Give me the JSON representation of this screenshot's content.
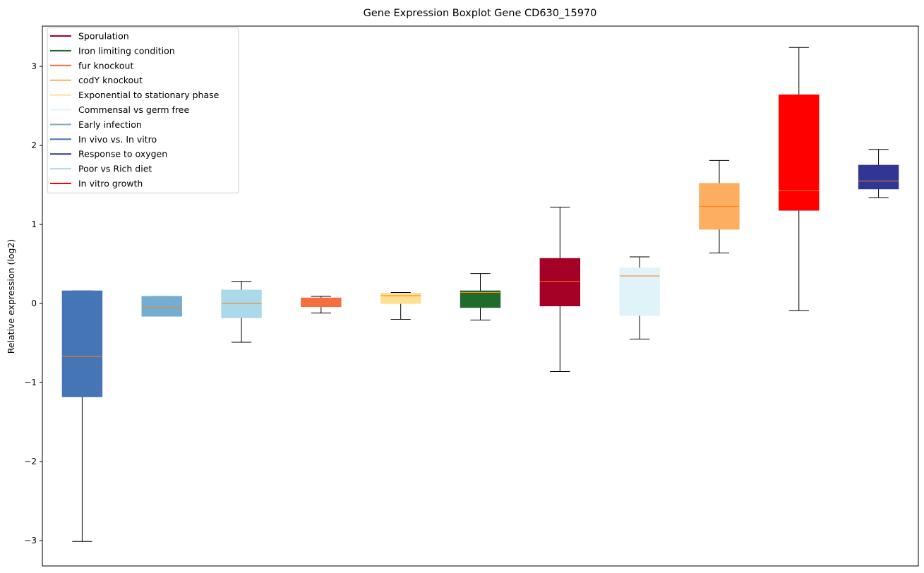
{
  "chart_data": {
    "type": "boxplot",
    "title": "Gene Expression Boxplot Gene CD630_15970",
    "xlabel": "",
    "ylabel": "Relative expression (log2)",
    "ylim": [
      -3.32,
      3.51
    ],
    "yticks": [
      3,
      2,
      1,
      0,
      -1,
      -2,
      -3
    ],
    "ytick_labels": [
      "3",
      "2",
      "1",
      "0",
      "−1",
      "−2",
      "−3"
    ],
    "legend_position": "top-left",
    "median_color": "#ff7f0e",
    "legend": [
      {
        "label": "Sporulation",
        "color": "#a50026"
      },
      {
        "label": "Iron limiting condition",
        "color": "#1e6b2c"
      },
      {
        "label": "fur knockout",
        "color": "#f46d43"
      },
      {
        "label": "codY knockout",
        "color": "#fdae61"
      },
      {
        "label": "Exponential to stationary phase",
        "color": "#fee090"
      },
      {
        "label": "Commensal vs germ free",
        "color": "#e0f3f8"
      },
      {
        "label": "Early infection",
        "color": "#74add1"
      },
      {
        "label": "In vivo vs. In vitro",
        "color": "#4575b4"
      },
      {
        "label": "Response to oxygen",
        "color": "#313695"
      },
      {
        "label": "Poor vs Rich diet",
        "color": "#abd9e9"
      },
      {
        "label": "In vitro growth",
        "color": "#ff0000"
      }
    ],
    "boxes": [
      {
        "name": "In vivo vs. In vitro",
        "color": "#4575b4",
        "whislo": -3.01,
        "q1": -1.18,
        "med": -0.67,
        "q3": 0.16,
        "whishi": 0.16
      },
      {
        "name": "Early infection",
        "color": "#74add1",
        "whislo": -0.16,
        "q1": -0.16,
        "med": -0.05,
        "q3": 0.09,
        "whishi": 0.09
      },
      {
        "name": "Poor vs Rich diet",
        "color": "#abd9e9",
        "whislo": -0.49,
        "q1": -0.18,
        "med": 0.0,
        "q3": 0.17,
        "whishi": 0.28
      },
      {
        "name": "fur knockout",
        "color": "#f46d43",
        "whislo": -0.12,
        "q1": -0.04,
        "med": 0.0,
        "q3": 0.07,
        "whishi": 0.09
      },
      {
        "name": "Exponential to stationary phase",
        "color": "#fee090",
        "whislo": -0.2,
        "q1": 0.0,
        "med": 0.1,
        "q3": 0.13,
        "whishi": 0.14
      },
      {
        "name": "Iron limiting condition",
        "color": "#1e6b2c",
        "whislo": -0.21,
        "q1": -0.05,
        "med": 0.14,
        "q3": 0.16,
        "whishi": 0.38
      },
      {
        "name": "Sporulation",
        "color": "#a50026",
        "whislo": -0.86,
        "q1": -0.03,
        "med": 0.28,
        "q3": 0.57,
        "whishi": 1.22
      },
      {
        "name": "Commensal vs germ free",
        "color": "#e0f3f8",
        "whislo": -0.45,
        "q1": -0.15,
        "med": 0.35,
        "q3": 0.45,
        "whishi": 0.59
      },
      {
        "name": "codY knockout",
        "color": "#fdae61",
        "whislo": 0.64,
        "q1": 0.94,
        "med": 1.23,
        "q3": 1.52,
        "whishi": 1.81
      },
      {
        "name": "In vitro growth",
        "color": "#ff0000",
        "whislo": -0.09,
        "q1": 1.18,
        "med": 1.43,
        "q3": 2.64,
        "whishi": 3.24
      },
      {
        "name": "Response to oxygen",
        "color": "#313695",
        "whislo": 1.34,
        "q1": 1.45,
        "med": 1.55,
        "q3": 1.75,
        "whishi": 1.95
      }
    ]
  }
}
